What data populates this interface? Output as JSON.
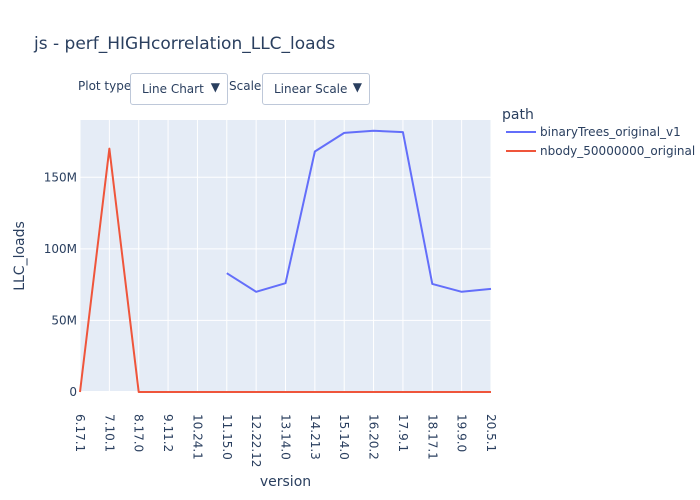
{
  "title": "js - perf_HIGHcorrelation_LLC_loads",
  "controls": {
    "plot_type_label": "Plot type:",
    "plot_type_value": "Line Chart",
    "scale_label": "Scale:",
    "scale_value": "Linear Scale",
    "arrow_glyph": "▼"
  },
  "colors": {
    "plot_bg": "#e5ecf6",
    "grid": "#ffffff",
    "text": "#2a3f5f",
    "binaryTrees": "#636efa",
    "nbody": "#ef553b"
  },
  "chart_data": {
    "type": "line",
    "title": "js - perf_HIGHcorrelation_LLC_loads",
    "xlabel": "version",
    "ylabel": "LLC_loads",
    "legend_title": "path",
    "legend_position": "top-right",
    "grid": true,
    "categories": [
      "6.17.1",
      "7.10.1",
      "8.17.0",
      "9.11.2",
      "10.24.1",
      "11.15.0",
      "12.22.12",
      "13.14.0",
      "14.21.3",
      "15.14.0",
      "16.20.2",
      "17.9.1",
      "18.17.1",
      "19.9.0",
      "20.5.1"
    ],
    "ylim": [
      0,
      190000000
    ],
    "y_ticks": [
      {
        "value": 0,
        "label": "0"
      },
      {
        "value": 50000000,
        "label": "50M"
      },
      {
        "value": 100000000,
        "label": "100M"
      },
      {
        "value": 150000000,
        "label": "150M"
      }
    ],
    "series": [
      {
        "name": "binaryTrees_original_v1",
        "color": "#636efa",
        "values": [
          null,
          null,
          null,
          null,
          null,
          83000000,
          70000000,
          76000000,
          168000000,
          181000000,
          182500000,
          181500000,
          75500000,
          70000000,
          72000000
        ]
      },
      {
        "name": "nbody_50000000_original",
        "color": "#ef553b",
        "values": [
          0,
          170000000,
          0,
          0,
          0,
          0,
          0,
          0,
          0,
          0,
          0,
          0,
          0,
          0,
          0
        ]
      }
    ]
  }
}
